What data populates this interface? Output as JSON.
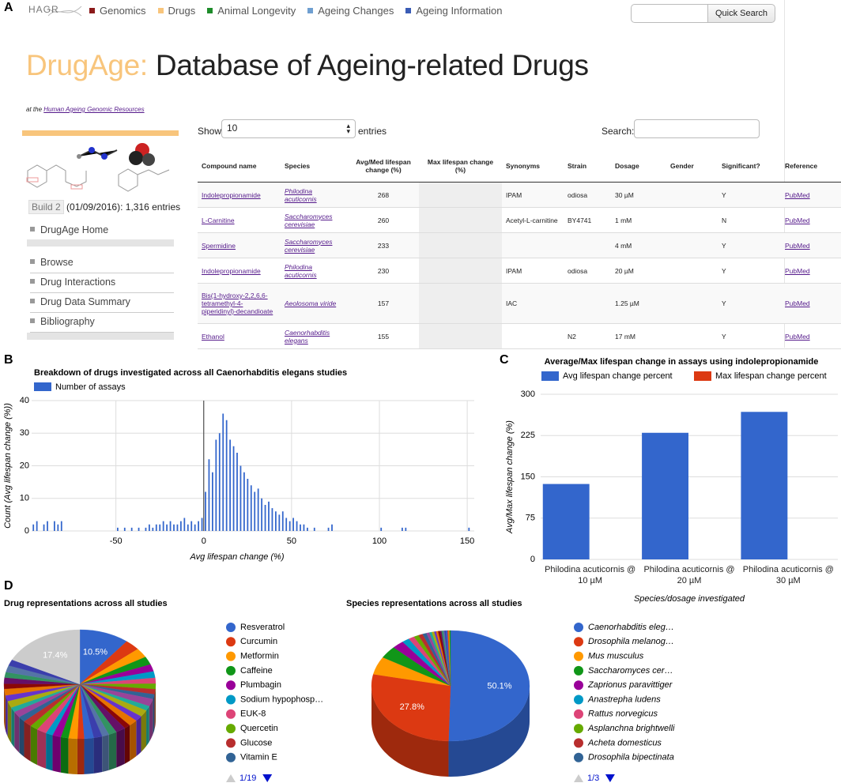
{
  "header": {
    "panel_labels": [
      "A",
      "B",
      "C",
      "D"
    ],
    "logo": "HAGR",
    "nav": [
      {
        "label": "Genomics",
        "color": "#8b1a1a"
      },
      {
        "label": "Drugs",
        "color": "#f8c57c"
      },
      {
        "label": "Animal Longevity",
        "color": "#1e8c2a"
      },
      {
        "label": "Ageing Changes",
        "color": "#6f9fd1"
      },
      {
        "label": "Ageing Information",
        "color": "#3a5cb5"
      }
    ],
    "search_button": "Quick Search"
  },
  "page": {
    "title_accent": "DrugAge:",
    "title": "Database of Ageing-related Drugs",
    "subtitle_prefix": "at the",
    "subtitle_link": "Human Ageing Genomic Resources",
    "build_link": "Build 2",
    "build_text": "(01/09/2016): 1,316 entries",
    "menu": [
      "DrugAge Home",
      "Browse",
      "Drug Interactions",
      "Drug Data Summary",
      "Bibliography"
    ]
  },
  "table": {
    "show_label": "Show",
    "page_size": 10,
    "entries_label": "entries",
    "search_label": "Search:",
    "columns": [
      "Compound name",
      "Species",
      "Avg/Med lifespan change (%)",
      "Max lifespan change (%)",
      "Synonyms",
      "Strain",
      "Dosage",
      "Gender",
      "Significant?",
      "Reference"
    ],
    "rows": [
      [
        "Indolepropionamide",
        "Philodina acuticornis",
        268,
        null,
        "IPAM",
        "odiosa",
        "30 µM",
        null,
        "Y",
        "PubMed"
      ],
      [
        "L-Carnitine",
        "Saccharomyces cerevisiae",
        260,
        null,
        "Acetyl-L-carnitine",
        "BY4741",
        "1 mM",
        null,
        "N",
        "PubMed"
      ],
      [
        "Spermidine",
        "Saccharomyces cerevisiae",
        233,
        null,
        null,
        null,
        "4 mM",
        null,
        "Y",
        "PubMed"
      ],
      [
        "Indolepropionamide",
        "Philodina acuticornis",
        230,
        null,
        "IPAM",
        "odiosa",
        "20 µM",
        null,
        "Y",
        "PubMed"
      ],
      [
        "Bis(1-hydroxy-2,2,6,6-tetramethyl-4-piperidinyl)-decandioate",
        "Aeolosoma viride",
        157,
        null,
        "IAC",
        null,
        "1.25 µM",
        null,
        "Y",
        "PubMed"
      ],
      [
        "Ethanol",
        "Caenorhabditis elegans",
        155,
        null,
        null,
        "N2",
        "17 mM",
        null,
        "Y",
        "PubMed"
      ]
    ]
  },
  "chart_data": [
    {
      "type": "histogram",
      "title": "Breakdown of drugs investigated across all Caenorhabditis elegans studies",
      "series_name": "Number of assays",
      "color": "#3366cc",
      "x_label": "Avg lifespan change (%)",
      "y_label": "Count (Avg lifespan change (%))",
      "bins": [
        -98,
        -96,
        -94,
        -92,
        -90,
        -88,
        -86,
        -84,
        -82,
        -80,
        -78,
        -76,
        -74,
        -72,
        -70,
        -68,
        -66,
        -64,
        -62,
        -60,
        -58,
        -56,
        -54,
        -52,
        -50,
        -48,
        -46,
        -44,
        -42,
        -40,
        -38,
        -36,
        -34,
        -32,
        -30,
        -28,
        -26,
        -24,
        -22,
        -20,
        -18,
        -16,
        -14,
        -12,
        -10,
        -8,
        -6,
        -4,
        -2,
        0,
        2,
        4,
        6,
        8,
        10,
        12,
        14,
        16,
        18,
        20,
        22,
        24,
        26,
        28,
        30,
        32,
        34,
        36,
        38,
        40,
        42,
        44,
        46,
        48,
        50,
        52,
        54,
        56,
        58,
        60,
        62,
        64,
        66,
        68,
        70,
        72,
        74,
        76,
        78,
        80,
        82,
        84,
        86,
        88,
        90,
        92,
        94,
        96,
        98,
        100,
        102,
        104,
        106,
        108,
        110,
        112,
        114,
        116,
        118,
        120,
        122,
        124,
        126,
        128,
        130,
        132,
        134,
        136,
        138,
        140,
        142,
        144,
        146,
        148,
        150,
        152,
        154
      ],
      "values": [
        2,
        3,
        0,
        2,
        3,
        0,
        3,
        2,
        3,
        0,
        0,
        0,
        0,
        0,
        0,
        0,
        0,
        0,
        0,
        0,
        0,
        0,
        0,
        0,
        1,
        0,
        1,
        0,
        1,
        0,
        1,
        0,
        1,
        2,
        1,
        2,
        2,
        3,
        2,
        3,
        2,
        2,
        3,
        4,
        2,
        3,
        2,
        3,
        4,
        12,
        22,
        18,
        28,
        30,
        36,
        34,
        28,
        26,
        24,
        20,
        18,
        16,
        14,
        12,
        13,
        10,
        8,
        9,
        7,
        6,
        5,
        6,
        4,
        3,
        4,
        3,
        2,
        2,
        1,
        0,
        1,
        0,
        0,
        0,
        1,
        2,
        0,
        0,
        0,
        0,
        0,
        0,
        0,
        0,
        0,
        0,
        0,
        0,
        0,
        1,
        0,
        0,
        0,
        0,
        0,
        1,
        1,
        0,
        0,
        0,
        0,
        0,
        0,
        0,
        0,
        0,
        0,
        0,
        0,
        0,
        0,
        0,
        0,
        0,
        1,
        0
      ],
      "xlim": [
        -98,
        154
      ],
      "xticks": [
        -50,
        0,
        50,
        100,
        150
      ],
      "ylim": [
        0,
        40
      ],
      "yticks": [
        0,
        10,
        20,
        30,
        40
      ],
      "grid": true
    },
    {
      "type": "bar",
      "title": "Average/Max lifespan change in assays using indolepropionamide",
      "categories": [
        "Philodina acuticornis @ 10 µM",
        "Philodina acuticornis @ 20 µM",
        "Philodina acuticornis @ 30 µM"
      ],
      "series": [
        {
          "name": "Avg lifespan change percent",
          "color": "#3366cc",
          "values": [
            137,
            230,
            268
          ]
        },
        {
          "name": "Max lifespan change percent",
          "color": "#dc3912",
          "values": [
            null,
            null,
            null
          ]
        }
      ],
      "x_label": "Species/dosage investigated",
      "y_label": "Avg/Max lifespan change (%)",
      "ylim": [
        0,
        300
      ],
      "yticks": [
        0,
        75,
        150,
        225,
        300
      ],
      "grid": true
    },
    {
      "type": "pie3d",
      "title": "Drug representations across all studies",
      "legend_page": "1/19",
      "legend_italic": false,
      "categories": [
        "Resveratrol",
        "Curcumin",
        "Metformin",
        "Caffeine",
        "Plumbagin",
        "Sodium hypophosp…",
        "EUK-8",
        "Quercetin",
        "Glucose",
        "Vitamin E",
        null,
        null,
        null,
        null,
        null,
        null,
        null,
        null,
        null,
        null,
        null,
        null,
        null,
        null,
        null,
        null,
        null,
        null,
        null,
        null,
        null,
        null,
        null,
        null,
        null,
        null,
        null,
        null,
        null,
        null,
        null
      ],
      "values": [
        10.5,
        3.2,
        2.8,
        2.4,
        2.1,
        1.9,
        1.7,
        1.6,
        1.5,
        1.4,
        2.2,
        1.4,
        2.0,
        1.6,
        1.9,
        1.3,
        2.1,
        1.7,
        1.5,
        1.8,
        2.0,
        1.4,
        1.9,
        1.6,
        1.8,
        1.5,
        2.1,
        1.7,
        1.9,
        1.6,
        1.8,
        1.4,
        2.0,
        1.7,
        1.9,
        1.5,
        1.8,
        1.6,
        2.0,
        1.8,
        17.4
      ],
      "value_labels": [
        "10.5%",
        null,
        null,
        null,
        null,
        null,
        null,
        null,
        null,
        null,
        null,
        null,
        null,
        null,
        null,
        null,
        null,
        null,
        null,
        null,
        null,
        null,
        null,
        null,
        null,
        null,
        null,
        null,
        null,
        null,
        null,
        null,
        null,
        null,
        null,
        null,
        null,
        null,
        null,
        null,
        "17.4%"
      ],
      "colors": [
        "#3366cc",
        "#dc3912",
        "#ff9900",
        "#109618",
        "#990099",
        "#0099c6",
        "#dd4477",
        "#66aa00",
        "#b82e2e",
        "#316395",
        "#994499",
        "#22aa99",
        "#aaaa11",
        "#6633cc",
        "#e67300",
        "#8b0707",
        "#651067",
        "#329262",
        "#5574a6",
        "#3b3eac",
        "#3366cc",
        "#dc3912",
        "#ff9900",
        "#109618",
        "#990099",
        "#0099c6",
        "#dd4477",
        "#66aa00",
        "#b82e2e",
        "#316395",
        "#994499",
        "#22aa99",
        "#aaaa11",
        "#6633cc",
        "#e67300",
        "#8b0707",
        "#651067",
        "#329262",
        "#5574a6",
        "#3b3eac",
        "#cccccc"
      ]
    },
    {
      "type": "pie3d",
      "title": "Species representations across all studies",
      "legend_page": "1/3",
      "legend_italic": true,
      "categories": [
        "Caenorhabditis eleg…",
        "Drosophila melanog…",
        "Mus musculus",
        "Saccharomyces cer…",
        "Zaprionus paravittiger",
        "Anastrepha ludens",
        "Rattus norvegicus",
        "Asplanchna brightwelli",
        "Acheta domesticus",
        "Drosophila bipectinata",
        null,
        null,
        null,
        null,
        null,
        null,
        null,
        null,
        null,
        null,
        null,
        null,
        null,
        null
      ],
      "values": [
        50.1,
        27.8,
        5.2,
        3.6,
        2.4,
        1.5,
        1.2,
        1.0,
        0.9,
        0.8,
        0.6,
        0.5,
        0.5,
        0.4,
        0.4,
        0.4,
        0.3,
        0.3,
        0.3,
        0.3,
        0.3,
        0.2,
        0.2,
        0.2
      ],
      "value_labels": [
        "50.1%",
        "27.8%",
        null,
        null,
        null,
        null,
        null,
        null,
        null,
        null,
        null,
        null,
        null,
        null,
        null,
        null,
        null,
        null,
        null,
        null,
        null,
        null,
        null,
        null
      ],
      "colors": [
        "#3366cc",
        "#dc3912",
        "#ff9900",
        "#109618",
        "#990099",
        "#0099c6",
        "#dd4477",
        "#66aa00",
        "#b82e2e",
        "#316395",
        "#994499",
        "#22aa99",
        "#aaaa11",
        "#6633cc",
        "#e67300",
        "#8b0707",
        "#651067",
        "#329262",
        "#5574a6",
        "#3b3eac",
        "#3366cc",
        "#dc3912",
        "#ff9900",
        "#109618"
      ]
    }
  ]
}
